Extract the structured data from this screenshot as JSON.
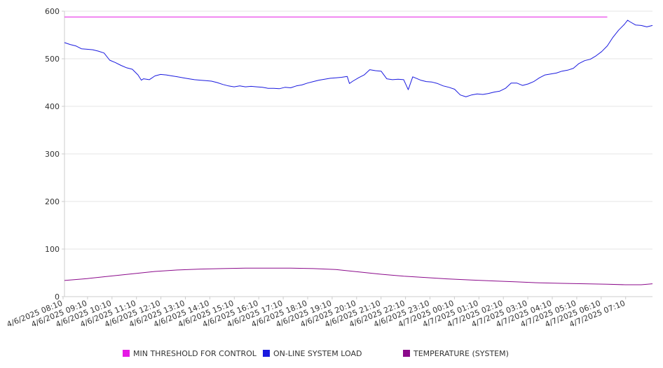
{
  "chart_data": {
    "type": "line",
    "ylim": [
      0,
      600
    ],
    "yticks": [
      0,
      100,
      200,
      300,
      400,
      500,
      600
    ],
    "grid": true,
    "legend_position": "bottom",
    "x_tick_labels": [
      "4/6/2025 08:10",
      "4/6/2025 09:10",
      "4/6/2025 10:10",
      "4/6/2025 11:10",
      "4/6/2025 12:10",
      "4/6/2025 13:10",
      "4/6/2025 14:10",
      "4/6/2025 15:10",
      "4/6/2025 16:10",
      "4/6/2025 17:10",
      "4/6/2025 18:10",
      "4/6/2025 19:10",
      "4/6/2025 20:10",
      "4/6/2025 21:10",
      "4/6/2025 22:10",
      "4/6/2025 23:10",
      "4/7/2025 00:10",
      "4/7/2025 01:10",
      "4/7/2025 02:10",
      "4/7/2025 03:10",
      "4/7/2025 04:10",
      "4/7/2025 05:10",
      "4/7/2025 06:10",
      "4/7/2025 07:10"
    ],
    "series": [
      {
        "name": "MIN THRESHOLD FOR CONTROL",
        "color": "#e619e6",
        "points": [
          [
            0,
            588
          ],
          [
            24,
            588
          ]
        ]
      },
      {
        "name": "ON-LINE SYSTEM LOAD",
        "color": "#1a1adf",
        "points": [
          [
            0,
            534
          ],
          [
            0.25,
            530
          ],
          [
            0.5,
            527
          ],
          [
            0.75,
            521
          ],
          [
            1,
            520
          ],
          [
            1.25,
            519
          ],
          [
            1.5,
            516
          ],
          [
            1.75,
            512
          ],
          [
            2,
            497
          ],
          [
            2.25,
            492
          ],
          [
            2.5,
            486
          ],
          [
            2.75,
            481
          ],
          [
            3,
            478
          ],
          [
            3.25,
            466
          ],
          [
            3.4,
            455
          ],
          [
            3.5,
            458
          ],
          [
            3.75,
            456
          ],
          [
            4,
            464
          ],
          [
            4.25,
            467
          ],
          [
            4.5,
            466
          ],
          [
            4.75,
            464
          ],
          [
            5,
            462
          ],
          [
            5.25,
            460
          ],
          [
            5.5,
            458
          ],
          [
            5.75,
            456
          ],
          [
            6,
            455
          ],
          [
            6.25,
            454
          ],
          [
            6.5,
            453
          ],
          [
            6.75,
            450
          ],
          [
            7,
            446
          ],
          [
            7.25,
            443
          ],
          [
            7.5,
            441
          ],
          [
            7.75,
            443
          ],
          [
            8,
            441
          ],
          [
            8.25,
            442
          ],
          [
            8.5,
            441
          ],
          [
            8.75,
            440
          ],
          [
            9,
            438
          ],
          [
            9.25,
            438
          ],
          [
            9.5,
            437
          ],
          [
            9.75,
            440
          ],
          [
            10,
            439
          ],
          [
            10.25,
            443
          ],
          [
            10.5,
            445
          ],
          [
            10.75,
            449
          ],
          [
            11,
            452
          ],
          [
            11.25,
            455
          ],
          [
            11.5,
            457
          ],
          [
            11.75,
            459
          ],
          [
            12,
            460
          ],
          [
            12.25,
            461
          ],
          [
            12.5,
            463
          ],
          [
            12.6,
            448
          ],
          [
            12.75,
            453
          ],
          [
            13,
            460
          ],
          [
            13.25,
            466
          ],
          [
            13.5,
            477
          ],
          [
            13.75,
            475
          ],
          [
            14,
            474
          ],
          [
            14.25,
            458
          ],
          [
            14.5,
            456
          ],
          [
            14.75,
            457
          ],
          [
            15,
            456
          ],
          [
            15.2,
            435
          ],
          [
            15.4,
            462
          ],
          [
            15.75,
            455
          ],
          [
            16,
            452
          ],
          [
            16.25,
            451
          ],
          [
            16.5,
            448
          ],
          [
            16.75,
            443
          ],
          [
            17,
            440
          ],
          [
            17.25,
            436
          ],
          [
            17.5,
            424
          ],
          [
            17.75,
            420
          ],
          [
            18,
            424
          ],
          [
            18.25,
            426
          ],
          [
            18.5,
            425
          ],
          [
            18.75,
            427
          ],
          [
            19,
            430
          ],
          [
            19.25,
            432
          ],
          [
            19.5,
            438
          ],
          [
            19.75,
            449
          ],
          [
            20,
            449
          ],
          [
            20.25,
            444
          ],
          [
            20.5,
            447
          ],
          [
            20.75,
            452
          ],
          [
            21,
            460
          ],
          [
            21.25,
            466
          ],
          [
            21.5,
            468
          ],
          [
            21.75,
            470
          ],
          [
            22,
            474
          ],
          [
            22.25,
            476
          ],
          [
            22.5,
            480
          ],
          [
            22.75,
            490
          ],
          [
            23,
            496
          ],
          [
            23.25,
            499
          ],
          [
            23.5,
            506
          ],
          [
            23.75,
            515
          ],
          [
            24,
            527
          ],
          [
            24.25,
            545
          ],
          [
            24.5,
            560
          ],
          [
            24.75,
            572
          ],
          [
            24.9,
            581
          ],
          [
            25,
            578
          ],
          [
            25.25,
            571
          ],
          [
            25.5,
            570
          ],
          [
            25.75,
            567
          ],
          [
            26,
            570
          ]
        ]
      },
      {
        "name": "TEMPERATURE (SYSTEM)",
        "color": "#8b0a8b",
        "points": [
          [
            0,
            34
          ],
          [
            1,
            38
          ],
          [
            2,
            43
          ],
          [
            3,
            48
          ],
          [
            4,
            53
          ],
          [
            5,
            56
          ],
          [
            6,
            58
          ],
          [
            7,
            59
          ],
          [
            8,
            60
          ],
          [
            9,
            60
          ],
          [
            10,
            60
          ],
          [
            11,
            59
          ],
          [
            12,
            57
          ],
          [
            13,
            52
          ],
          [
            14,
            47
          ],
          [
            15,
            43
          ],
          [
            16,
            40
          ],
          [
            17,
            37
          ],
          [
            18,
            35
          ],
          [
            19,
            33
          ],
          [
            20,
            31
          ],
          [
            21,
            29
          ],
          [
            22,
            28
          ],
          [
            23,
            27
          ],
          [
            24,
            26
          ],
          [
            24.8,
            25
          ],
          [
            25.5,
            25
          ],
          [
            26,
            27
          ]
        ]
      }
    ]
  }
}
